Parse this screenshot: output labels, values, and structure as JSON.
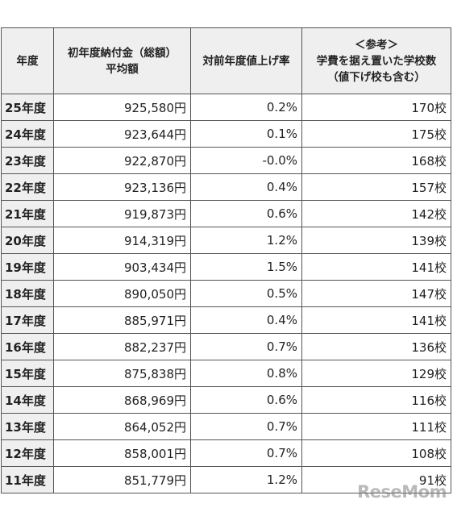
{
  "header": {
    "year": "年度",
    "avg_line1": "初年度納付金（総額）",
    "avg_line2": "平均額",
    "change": "対前年度値上げ率",
    "ref_line1": "＜参考＞",
    "ref_line2": "学費を据え置いた学校数",
    "ref_line3": "（値下げ校も含む）"
  },
  "rows": [
    {
      "year": "25年度",
      "amount": "925,580円",
      "rate": "0.2%",
      "schools": "170校"
    },
    {
      "year": "24年度",
      "amount": "923,644円",
      "rate": "0.1%",
      "schools": "175校"
    },
    {
      "year": "23年度",
      "amount": "922,870円",
      "rate": "-0.0%",
      "schools": "168校"
    },
    {
      "year": "22年度",
      "amount": "923,136円",
      "rate": "0.4%",
      "schools": "157校"
    },
    {
      "year": "21年度",
      "amount": "919,873円",
      "rate": "0.6%",
      "schools": "142校"
    },
    {
      "year": "20年度",
      "amount": "914,319円",
      "rate": "1.2%",
      "schools": "139校"
    },
    {
      "year": "19年度",
      "amount": "903,434円",
      "rate": "1.5%",
      "schools": "141校"
    },
    {
      "year": "18年度",
      "amount": "890,050円",
      "rate": "0.5%",
      "schools": "147校"
    },
    {
      "year": "17年度",
      "amount": "885,971円",
      "rate": "0.4%",
      "schools": "141校"
    },
    {
      "year": "16年度",
      "amount": "882,237円",
      "rate": "0.7%",
      "schools": "136校"
    },
    {
      "year": "15年度",
      "amount": "875,838円",
      "rate": "0.8%",
      "schools": "129校"
    },
    {
      "year": "14年度",
      "amount": "868,969円",
      "rate": "0.6%",
      "schools": "116校"
    },
    {
      "year": "13年度",
      "amount": "864,052円",
      "rate": "0.7%",
      "schools": "111校"
    },
    {
      "year": "12年度",
      "amount": "858,001円",
      "rate": "0.7%",
      "schools": "108校"
    },
    {
      "year": "11年度",
      "amount": "851,779円",
      "rate": "1.2%",
      "schools": "91校"
    }
  ],
  "watermark": "ReseMom"
}
